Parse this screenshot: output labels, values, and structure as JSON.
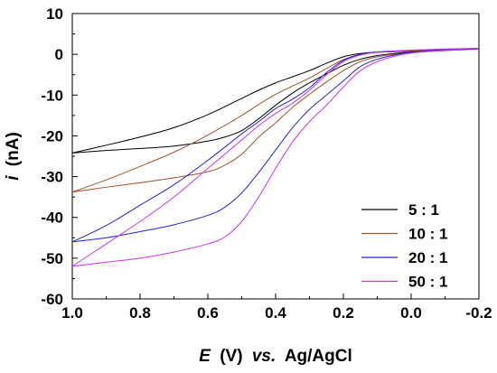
{
  "chart_data": {
    "type": "line",
    "title": "",
    "xlabel": {
      "italic_symbol": "E",
      "unit": "(V)",
      "vs": "vs.",
      "ref": "Ag/AgCl"
    },
    "ylabel": {
      "italic_symbol": "i",
      "unit": "(nA)"
    },
    "xlim": [
      1.0,
      -0.2
    ],
    "ylim": [
      -60,
      10
    ],
    "x_reversed": true,
    "x_ticks": [
      {
        "value": 1.0,
        "label": "1.0"
      },
      {
        "value": 0.8,
        "label": "0.8"
      },
      {
        "value": 0.6,
        "label": "0.6"
      },
      {
        "value": 0.4,
        "label": "0.4"
      },
      {
        "value": 0.2,
        "label": "0.2"
      },
      {
        "value": 0.0,
        "label": "0.0"
      },
      {
        "value": -0.2,
        "label": "-0.2"
      }
    ],
    "y_ticks": [
      {
        "value": 10,
        "label": "10"
      },
      {
        "value": 0,
        "label": "0"
      },
      {
        "value": -10,
        "label": "-10"
      },
      {
        "value": -20,
        "label": "-20"
      },
      {
        "value": -30,
        "label": "-30"
      },
      {
        "value": -40,
        "label": "-40"
      },
      {
        "value": -50,
        "label": "-50"
      },
      {
        "value": -60,
        "label": "-60"
      }
    ],
    "grid": false,
    "legend_position": "bottom-right",
    "series": [
      {
        "name": "5 : 1",
        "color": "#000000",
        "forward": [
          [
            1.0,
            -24.2
          ],
          [
            0.9,
            -22.3
          ],
          [
            0.8,
            -20.3
          ],
          [
            0.7,
            -18.0
          ],
          [
            0.6,
            -14.8
          ],
          [
            0.5,
            -10.8
          ],
          [
            0.45,
            -8.8
          ],
          [
            0.4,
            -7.0
          ],
          [
            0.35,
            -5.5
          ],
          [
            0.3,
            -4.0
          ],
          [
            0.25,
            -2.2
          ],
          [
            0.2,
            -0.6
          ],
          [
            0.15,
            0.2
          ],
          [
            0.1,
            0.5
          ],
          [
            0.0,
            0.8
          ],
          [
            -0.1,
            1.1
          ],
          [
            -0.2,
            1.4
          ]
        ],
        "reverse": [
          [
            -0.2,
            1.4
          ],
          [
            -0.1,
            1.0
          ],
          [
            0.0,
            0.6
          ],
          [
            0.05,
            0.2
          ],
          [
            0.1,
            -0.3
          ],
          [
            0.15,
            -1.2
          ],
          [
            0.2,
            -2.7
          ],
          [
            0.25,
            -4.8
          ],
          [
            0.3,
            -7.0
          ],
          [
            0.35,
            -9.5
          ],
          [
            0.4,
            -12.5
          ],
          [
            0.45,
            -15.8
          ],
          [
            0.5,
            -18.7
          ],
          [
            0.55,
            -20.3
          ],
          [
            0.6,
            -21.3
          ],
          [
            0.7,
            -22.5
          ],
          [
            0.8,
            -23.1
          ],
          [
            0.9,
            -23.6
          ],
          [
            1.0,
            -24.2
          ]
        ]
      },
      {
        "name": "10 : 1",
        "color": "#a0522d",
        "forward": [
          [
            1.0,
            -33.8
          ],
          [
            0.9,
            -30.8
          ],
          [
            0.8,
            -27.5
          ],
          [
            0.7,
            -24.0
          ],
          [
            0.6,
            -19.8
          ],
          [
            0.5,
            -15.0
          ],
          [
            0.45,
            -12.3
          ],
          [
            0.4,
            -9.8
          ],
          [
            0.35,
            -7.8
          ],
          [
            0.3,
            -5.8
          ],
          [
            0.25,
            -3.5
          ],
          [
            0.2,
            -1.3
          ],
          [
            0.15,
            0.0
          ],
          [
            0.1,
            0.5
          ],
          [
            0.0,
            0.8
          ],
          [
            -0.1,
            1.1
          ],
          [
            -0.2,
            1.3
          ]
        ],
        "reverse": [
          [
            -0.2,
            1.3
          ],
          [
            -0.1,
            0.9
          ],
          [
            0.0,
            0.5
          ],
          [
            0.05,
            0.0
          ],
          [
            0.1,
            -0.6
          ],
          [
            0.15,
            -1.8
          ],
          [
            0.2,
            -4.0
          ],
          [
            0.25,
            -6.8
          ],
          [
            0.3,
            -9.8
          ],
          [
            0.35,
            -13.0
          ],
          [
            0.4,
            -16.8
          ],
          [
            0.45,
            -20.3
          ],
          [
            0.5,
            -24.5
          ],
          [
            0.55,
            -27.2
          ],
          [
            0.6,
            -28.8
          ],
          [
            0.7,
            -30.3
          ],
          [
            0.8,
            -31.5
          ],
          [
            0.9,
            -32.6
          ],
          [
            1.0,
            -33.8
          ]
        ]
      },
      {
        "name": "20 : 1",
        "color": "#2222cc",
        "forward": [
          [
            1.0,
            -46.0
          ],
          [
            0.9,
            -42.0
          ],
          [
            0.8,
            -37.0
          ],
          [
            0.7,
            -32.0
          ],
          [
            0.6,
            -26.0
          ],
          [
            0.5,
            -19.5
          ],
          [
            0.45,
            -16.5
          ],
          [
            0.4,
            -13.3
          ],
          [
            0.35,
            -11.0
          ],
          [
            0.3,
            -8.2
          ],
          [
            0.25,
            -4.5
          ],
          [
            0.2,
            -1.5
          ],
          [
            0.15,
            0.0
          ],
          [
            0.1,
            0.6
          ],
          [
            0.0,
            1.0
          ],
          [
            -0.1,
            1.2
          ],
          [
            -0.2,
            1.4
          ]
        ],
        "reverse": [
          [
            -0.2,
            1.4
          ],
          [
            -0.1,
            1.0
          ],
          [
            0.0,
            0.5
          ],
          [
            0.05,
            -0.2
          ],
          [
            0.1,
            -1.2
          ],
          [
            0.15,
            -3.0
          ],
          [
            0.2,
            -6.5
          ],
          [
            0.25,
            -10.0
          ],
          [
            0.3,
            -13.5
          ],
          [
            0.35,
            -18.0
          ],
          [
            0.4,
            -23.5
          ],
          [
            0.45,
            -29.0
          ],
          [
            0.5,
            -34.0
          ],
          [
            0.55,
            -37.5
          ],
          [
            0.6,
            -39.5
          ],
          [
            0.7,
            -41.8
          ],
          [
            0.8,
            -43.5
          ],
          [
            0.9,
            -45.0
          ],
          [
            1.0,
            -46.0
          ]
        ]
      },
      {
        "name": "50 : 1",
        "color": "#cc33ee",
        "forward": [
          [
            1.0,
            -52.0
          ],
          [
            0.9,
            -46.5
          ],
          [
            0.8,
            -41.0
          ],
          [
            0.7,
            -35.0
          ],
          [
            0.6,
            -28.0
          ],
          [
            0.5,
            -21.0
          ],
          [
            0.45,
            -17.5
          ],
          [
            0.4,
            -14.5
          ],
          [
            0.35,
            -12.0
          ],
          [
            0.3,
            -8.8
          ],
          [
            0.25,
            -5.0
          ],
          [
            0.2,
            -1.8
          ],
          [
            0.15,
            -0.2
          ],
          [
            0.1,
            0.5
          ],
          [
            0.0,
            1.0
          ],
          [
            -0.1,
            1.3
          ],
          [
            -0.2,
            1.5
          ]
        ],
        "reverse": [
          [
            -0.2,
            1.5
          ],
          [
            -0.1,
            1.0
          ],
          [
            0.0,
            0.3
          ],
          [
            0.05,
            -0.5
          ],
          [
            0.1,
            -1.8
          ],
          [
            0.15,
            -4.0
          ],
          [
            0.2,
            -8.0
          ],
          [
            0.25,
            -12.5
          ],
          [
            0.3,
            -16.5
          ],
          [
            0.35,
            -21.5
          ],
          [
            0.4,
            -28.0
          ],
          [
            0.45,
            -35.0
          ],
          [
            0.5,
            -41.0
          ],
          [
            0.55,
            -44.8
          ],
          [
            0.6,
            -46.5
          ],
          [
            0.7,
            -48.5
          ],
          [
            0.8,
            -50.0
          ],
          [
            0.9,
            -51.0
          ],
          [
            1.0,
            -52.0
          ]
        ]
      }
    ]
  }
}
